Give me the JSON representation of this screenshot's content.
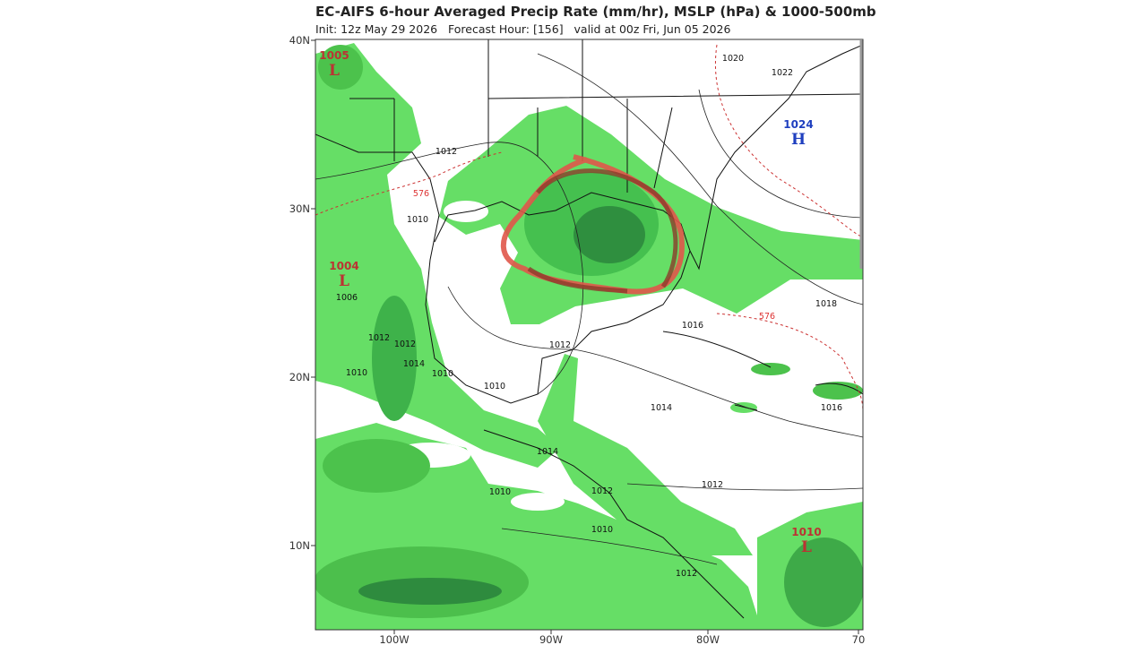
{
  "header": {
    "title": "EC-AIFS 6-hour Averaged Precip Rate (mm/hr), MSLP (hPa) & 1000-500mb",
    "subtitle": "Init: 12z May 29 2026   Forecast Hour: [156]   valid at 00z Fri, Jun 05 2026"
  },
  "lat_labels": [
    "40N",
    "30N",
    "20N",
    "10N"
  ],
  "lon_labels": [
    "100W",
    "90W",
    "80W",
    "70"
  ],
  "pressure_centers": [
    {
      "value": "1005",
      "letter": "L"
    },
    {
      "value": "1004",
      "letter": "L"
    },
    {
      "value": "1024",
      "letter": "H"
    },
    {
      "value": "1010",
      "letter": "L"
    }
  ],
  "isobar_labels": [
    "1012",
    "576",
    "1010",
    "1006",
    "1012",
    "1012",
    "1014",
    "1010",
    "1010",
    "1012",
    "1010",
    "1014",
    "1016",
    "1018",
    "576",
    "1016",
    "1014",
    "1010",
    "1012",
    "1012",
    "1010",
    "1012",
    "1020",
    "1022"
  ]
}
